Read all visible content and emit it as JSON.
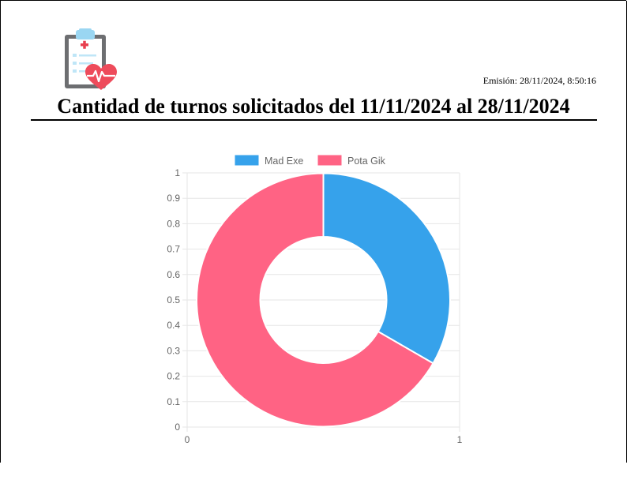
{
  "report": {
    "emission_label": "Emisión:",
    "emission_value": "28/11/2024, 8:50:16",
    "title": "Cantidad de turnos solicitados del 11/11/2024 al 28/11/2024"
  },
  "logo_icon": "clipboard-heart-icon",
  "colors": {
    "series_a": "#36a2eb",
    "series_b": "#ff6384",
    "grid": "#e6e6e6",
    "tick": "#666666"
  },
  "chart_data": {
    "type": "doughnut",
    "labels": [
      "Mad Exe",
      "Pota Gik"
    ],
    "values": [
      1,
      2
    ],
    "y_ticks": [
      "1",
      "0.9",
      "0.8",
      "0.7",
      "0.6",
      "0.5",
      "0.4",
      "0.3",
      "0.2",
      "0.1",
      "0"
    ],
    "x_ticks": [
      "0",
      "1"
    ],
    "legend_position": "top",
    "grid": true
  }
}
